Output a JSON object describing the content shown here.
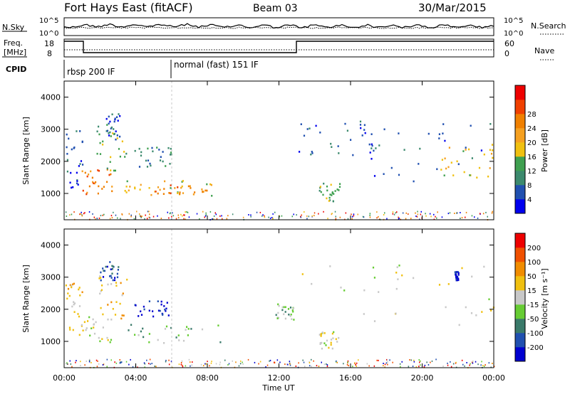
{
  "header": {
    "station": "Fort Hays East (fitACF)",
    "beam": "Beam 03",
    "date": "30/Mar/2015"
  },
  "top_strip": {
    "left_label": "N.Sky",
    "right_label": "N.Search",
    "left_ticks": [
      "10^5",
      "10^0"
    ],
    "right_ticks": [
      "10^5",
      "10^0"
    ]
  },
  "freq_strip": {
    "left_label_line1": "Freq.",
    "left_label_line2": "[MHz]",
    "right_label": "Nave",
    "left_ticks": [
      "18",
      "8"
    ],
    "right_ticks": [
      "60",
      "0"
    ]
  },
  "cpid": {
    "label": "CPID",
    "segments": [
      {
        "text": "rbsp 200 IF",
        "start_hour": 0
      },
      {
        "text": "normal (fast) 151 IF",
        "start_hour": 6
      }
    ]
  },
  "axes": {
    "xlabel": "Time UT",
    "x_ticks": [
      "00:00",
      "04:00",
      "08:00",
      "12:00",
      "16:00",
      "20:00",
      "00:00"
    ],
    "ylabel": "Slant Range [km]",
    "y_ticks": [
      "1000",
      "2000",
      "3000",
      "4000"
    ]
  },
  "colorbars": {
    "power": {
      "label": "Power [dB]",
      "ticks": [
        "4",
        "8",
        "12",
        "16",
        "20",
        "24",
        "28"
      ],
      "colors": [
        "#0000ee",
        "#2050b0",
        "#3c8a6e",
        "#3fa050",
        "#f0c010",
        "#f5a020",
        "#f08000",
        "#f04000",
        "#ee0000"
      ]
    },
    "velocity": {
      "label": "Velocity [m s⁻¹]",
      "ticks": [
        "200",
        "100",
        "50",
        "15",
        "-15",
        "-50",
        "-100",
        "-200"
      ],
      "colors": [
        "#0000d0",
        "#2050b0",
        "#3a7a6a",
        "#66cc33",
        "#c8c8c8",
        "#f0c010",
        "#f08c00",
        "#f05000",
        "#ee0000"
      ]
    }
  },
  "chart_data": [
    {
      "type": "heatmap",
      "panel": "power",
      "x_range_hours": [
        0,
        24
      ],
      "y_range_km": [
        180,
        4500
      ],
      "regions": [
        {
          "t0": 0.05,
          "t1": 1.0,
          "r0": 1200,
          "r1": 3000,
          "level": 1
        },
        {
          "t0": 0.9,
          "t1": 2.7,
          "r0": 1000,
          "r1": 1800,
          "level": 6
        },
        {
          "t0": 1.8,
          "t1": 3.5,
          "r0": 1700,
          "r1": 3200,
          "level": 3
        },
        {
          "t0": 2.2,
          "t1": 3.1,
          "r0": 2700,
          "r1": 3500,
          "level": 1
        },
        {
          "t0": 3.6,
          "t1": 6.0,
          "r0": 1800,
          "r1": 2500,
          "level": 2
        },
        {
          "t0": 3.3,
          "t1": 8.8,
          "r0": 950,
          "r1": 1450,
          "level": 4
        },
        {
          "t0": 5.0,
          "t1": 8.0,
          "r0": 1000,
          "r1": 1300,
          "level": 6
        },
        {
          "t0": 13.0,
          "t1": 17.5,
          "r0": 2200,
          "r1": 3300,
          "level": 1
        },
        {
          "t0": 14.2,
          "t1": 15.4,
          "r0": 750,
          "r1": 1350,
          "level": 3
        },
        {
          "t0": 16.5,
          "t1": 24.0,
          "r0": 1400,
          "r1": 3300,
          "level": 1
        },
        {
          "t0": 21.0,
          "t1": 24.0,
          "r0": 1500,
          "r1": 2600,
          "level": 4
        }
      ]
    },
    {
      "type": "heatmap",
      "panel": "velocity",
      "x_range_hours": [
        0,
        24
      ],
      "y_range_km": [
        180,
        4500
      ],
      "regions": [
        {
          "t0": 0.05,
          "t1": 1.0,
          "r0": 1200,
          "r1": 3000,
          "level": 5
        },
        {
          "t0": 0.9,
          "t1": 2.6,
          "r0": 1000,
          "r1": 1800,
          "level": 4
        },
        {
          "t0": 1.8,
          "t1": 3.5,
          "r0": 1700,
          "r1": 3200,
          "level": 5
        },
        {
          "t0": 2.0,
          "t1": 3.0,
          "r0": 2900,
          "r1": 3500,
          "level": 1
        },
        {
          "t0": 3.8,
          "t1": 5.8,
          "r0": 1800,
          "r1": 2300,
          "level": 0
        },
        {
          "t0": 3.5,
          "t1": 8.8,
          "r0": 950,
          "r1": 1550,
          "level": 3
        },
        {
          "t0": 11.8,
          "t1": 12.8,
          "r0": 1700,
          "r1": 2200,
          "level": 3
        },
        {
          "t0": 13.0,
          "t1": 24.0,
          "r0": 1400,
          "r1": 3400,
          "level": 4
        },
        {
          "t0": 14.2,
          "t1": 15.4,
          "r0": 750,
          "r1": 1350,
          "level": 4
        },
        {
          "t0": 21.8,
          "t1": 22.0,
          "r0": 2900,
          "r1": 3200,
          "level": 0
        }
      ]
    }
  ]
}
